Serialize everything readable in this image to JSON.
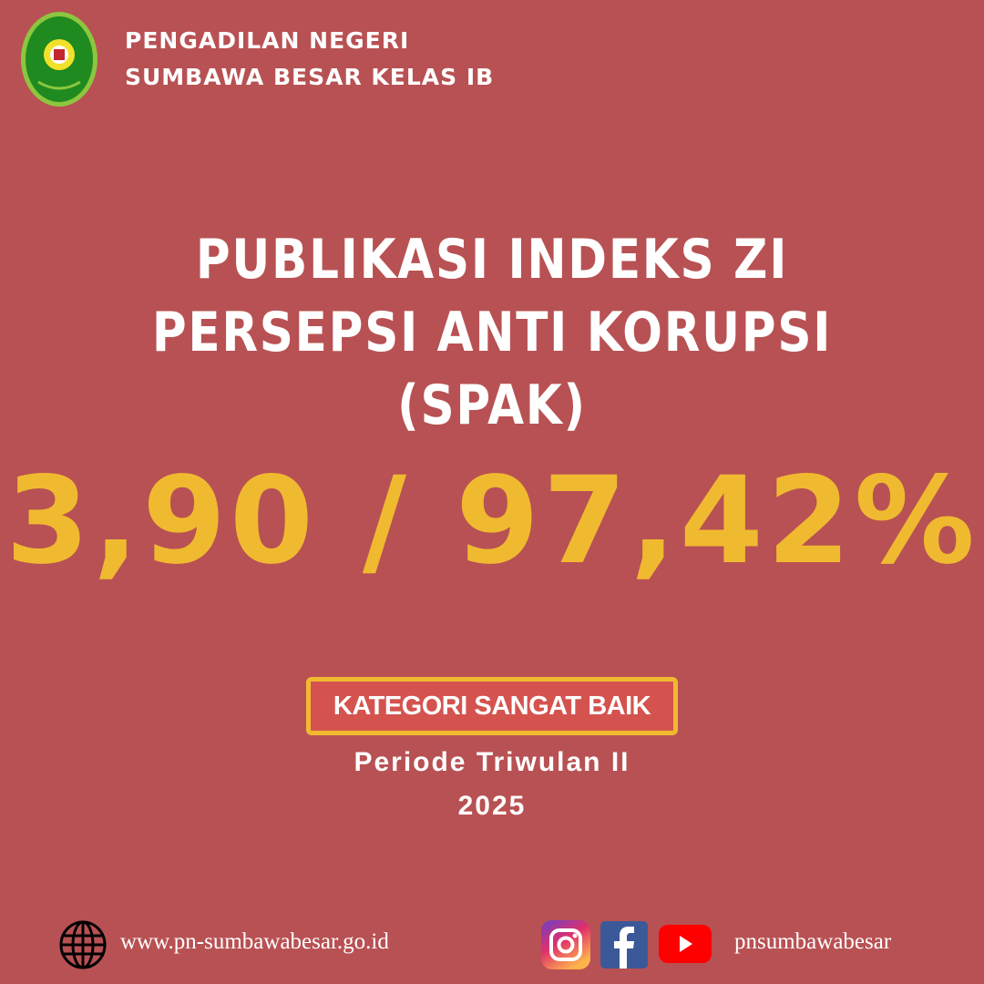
{
  "header": {
    "org_line1": "PENGADILAN NEGERI",
    "org_line2": "SUMBAWA BESAR KELAS IB",
    "logo_text": "PENGADILAN NEGERI SUMBAWA BESAR"
  },
  "main": {
    "title_line1": "PUBLIKASI INDEKS ZI",
    "title_line2": "PERSEPSI ANTI KORUPSI (SPAK)",
    "score": "3,90 / 97,42%",
    "category": "KATEGORI SANGAT BAIK",
    "period_line1": "Periode Triwulan II",
    "period_line2": "2025"
  },
  "footer": {
    "website": "www.pn-sumbawabesar.go.id",
    "social_handle": "pnsumbawabesar",
    "icons": [
      "globe-icon",
      "instagram-icon",
      "facebook-icon",
      "youtube-icon"
    ]
  },
  "colors": {
    "background": "#b85153",
    "accent": "#f0ba30",
    "badge": "#d4534f"
  }
}
